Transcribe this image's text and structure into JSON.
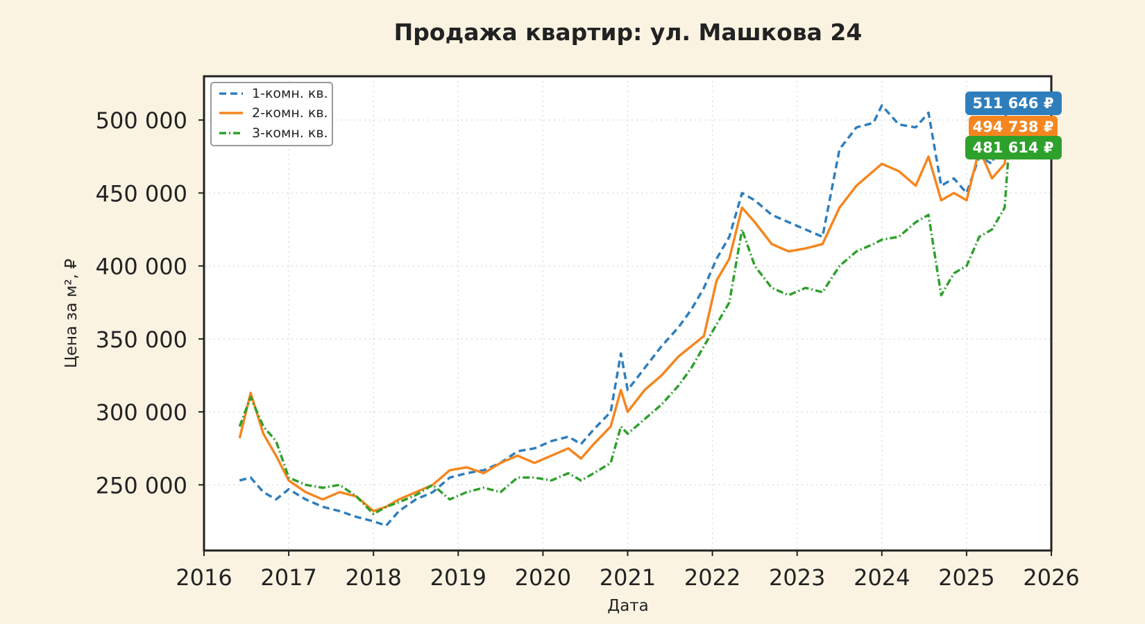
{
  "chart_data": {
    "type": "line",
    "title": "Продажа квартир: ул. Машкова 24",
    "xlabel": "Дата",
    "ylabel": "Цена за м², ₽",
    "xlim": [
      2016.0,
      2026.0
    ],
    "ylim": [
      205000,
      530000
    ],
    "xticks": [
      2016,
      2017,
      2018,
      2019,
      2020,
      2021,
      2022,
      2023,
      2024,
      2025,
      2026
    ],
    "xtick_labels": [
      "2016",
      "2017",
      "2018",
      "2019",
      "2020",
      "2021",
      "2022",
      "2023",
      "2024",
      "2025",
      "2026"
    ],
    "yticks": [
      250000,
      300000,
      350000,
      400000,
      450000,
      500000
    ],
    "ytick_labels": [
      "250 000",
      "300 000",
      "350 000",
      "400 000",
      "450 000",
      "500 000"
    ],
    "grid": true,
    "legend_position": "top-left",
    "series": [
      {
        "name": "1-комн. кв.",
        "color": "#2f7ebc",
        "dash": "dashed",
        "last_value_label": "511 646 ₽",
        "x": [
          2016.42,
          2016.55,
          2016.7,
          2016.85,
          2017.0,
          2017.2,
          2017.4,
          2017.6,
          2017.8,
          2018.0,
          2018.15,
          2018.3,
          2018.5,
          2018.7,
          2018.9,
          2019.1,
          2019.3,
          2019.5,
          2019.7,
          2019.9,
          2020.1,
          2020.3,
          2020.45,
          2020.6,
          2020.8,
          2020.92,
          2021.0,
          2021.2,
          2021.4,
          2021.6,
          2021.75,
          2021.9,
          2022.05,
          2022.2,
          2022.35,
          2022.5,
          2022.7,
          2022.9,
          2023.1,
          2023.3,
          2023.5,
          2023.7,
          2023.9,
          2024.0,
          2024.2,
          2024.4,
          2024.55,
          2024.7,
          2024.85,
          2025.0,
          2025.15,
          2025.3,
          2025.45,
          2025.5
        ],
        "y": [
          253000,
          255000,
          245000,
          240000,
          247000,
          240000,
          235000,
          232000,
          228000,
          225000,
          222000,
          232000,
          240000,
          245000,
          255000,
          258000,
          260000,
          265000,
          273000,
          275000,
          280000,
          283000,
          278000,
          288000,
          300000,
          340000,
          315000,
          330000,
          345000,
          358000,
          370000,
          385000,
          405000,
          420000,
          450000,
          445000,
          435000,
          430000,
          425000,
          420000,
          480000,
          495000,
          498000,
          510000,
          497000,
          495000,
          505000,
          455000,
          460000,
          450000,
          475000,
          470000,
          500000,
          511646
        ]
      },
      {
        "name": "2-комн. кв.",
        "color": "#f5861f",
        "dash": "solid",
        "last_value_label": "494 738 ₽",
        "x": [
          2016.42,
          2016.55,
          2016.7,
          2016.85,
          2017.0,
          2017.2,
          2017.4,
          2017.6,
          2017.8,
          2018.0,
          2018.15,
          2018.3,
          2018.5,
          2018.7,
          2018.9,
          2019.1,
          2019.3,
          2019.5,
          2019.7,
          2019.9,
          2020.1,
          2020.3,
          2020.45,
          2020.6,
          2020.8,
          2020.92,
          2021.0,
          2021.2,
          2021.4,
          2021.6,
          2021.75,
          2021.9,
          2022.05,
          2022.2,
          2022.35,
          2022.5,
          2022.7,
          2022.9,
          2023.1,
          2023.3,
          2023.5,
          2023.7,
          2023.9,
          2024.0,
          2024.2,
          2024.4,
          2024.55,
          2024.7,
          2024.85,
          2025.0,
          2025.15,
          2025.3,
          2025.45,
          2025.5
        ],
        "y": [
          282000,
          313000,
          285000,
          270000,
          253000,
          245000,
          240000,
          245000,
          242000,
          232000,
          235000,
          240000,
          245000,
          250000,
          260000,
          262000,
          258000,
          265000,
          270000,
          265000,
          270000,
          275000,
          268000,
          278000,
          290000,
          315000,
          300000,
          315000,
          325000,
          338000,
          345000,
          352000,
          390000,
          405000,
          440000,
          430000,
          415000,
          410000,
          412000,
          415000,
          440000,
          455000,
          465000,
          470000,
          465000,
          455000,
          475000,
          445000,
          450000,
          445000,
          480000,
          460000,
          470000,
          494738
        ]
      },
      {
        "name": "3-комн. кв.",
        "color": "#2ea02c",
        "dash": "dashdot",
        "last_value_label": "481 614 ₽",
        "x": [
          2016.42,
          2016.55,
          2016.7,
          2016.85,
          2017.0,
          2017.2,
          2017.4,
          2017.6,
          2017.8,
          2018.0,
          2018.15,
          2018.3,
          2018.5,
          2018.7,
          2018.9,
          2019.1,
          2019.3,
          2019.5,
          2019.7,
          2019.9,
          2020.1,
          2020.3,
          2020.45,
          2020.6,
          2020.8,
          2020.92,
          2021.0,
          2021.2,
          2021.4,
          2021.6,
          2021.75,
          2021.9,
          2022.05,
          2022.2,
          2022.35,
          2022.5,
          2022.7,
          2022.9,
          2023.1,
          2023.3,
          2023.5,
          2023.7,
          2023.9,
          2024.0,
          2024.2,
          2024.4,
          2024.55,
          2024.7,
          2024.85,
          2025.0,
          2025.15,
          2025.3,
          2025.45,
          2025.5
        ],
        "y": [
          290000,
          310000,
          290000,
          280000,
          255000,
          250000,
          248000,
          250000,
          242000,
          230000,
          235000,
          238000,
          243000,
          250000,
          240000,
          245000,
          248000,
          245000,
          255000,
          255000,
          253000,
          258000,
          253000,
          258000,
          265000,
          290000,
          285000,
          295000,
          305000,
          318000,
          330000,
          345000,
          360000,
          375000,
          425000,
          400000,
          385000,
          380000,
          385000,
          382000,
          400000,
          410000,
          415000,
          418000,
          420000,
          430000,
          435000,
          380000,
          395000,
          400000,
          420000,
          425000,
          440000,
          481614
        ]
      }
    ]
  },
  "colors": {
    "background": "#fbf3e2",
    "plot_background": "#ffffff",
    "frame": "#222222",
    "grid": "#dddddd"
  }
}
